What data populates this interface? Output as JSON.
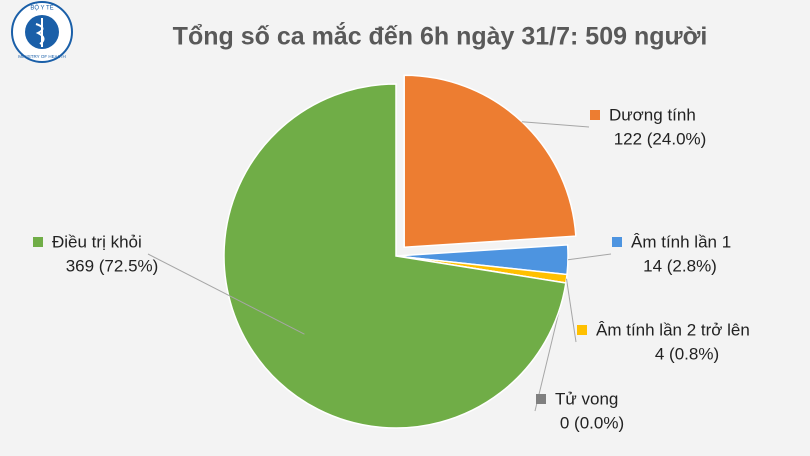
{
  "logo": {
    "top": "BỘ Y TẾ",
    "bottom": "MINISTRY OF HEALTH"
  },
  "chart_data": {
    "type": "pie",
    "title": "Tổng số ca mắc đến 6h ngày 31/7: 509 người",
    "categories": [
      "Dương tính",
      "Âm tính lần 1",
      "Âm tính lần 2 trở lên",
      "Tử vong",
      "Điều trị khỏi"
    ],
    "values": [
      122,
      14,
      4,
      0,
      369
    ],
    "value_labels": [
      "122 (24.0%)",
      "14 (2.8%)",
      "4 (0.8%)",
      "0 (0.0%)",
      "369 (72.5%)"
    ],
    "colors": [
      "#ed7d31",
      "#4d94e0",
      "#ffc000",
      "#7f7f7f",
      "#70ad47"
    ]
  }
}
